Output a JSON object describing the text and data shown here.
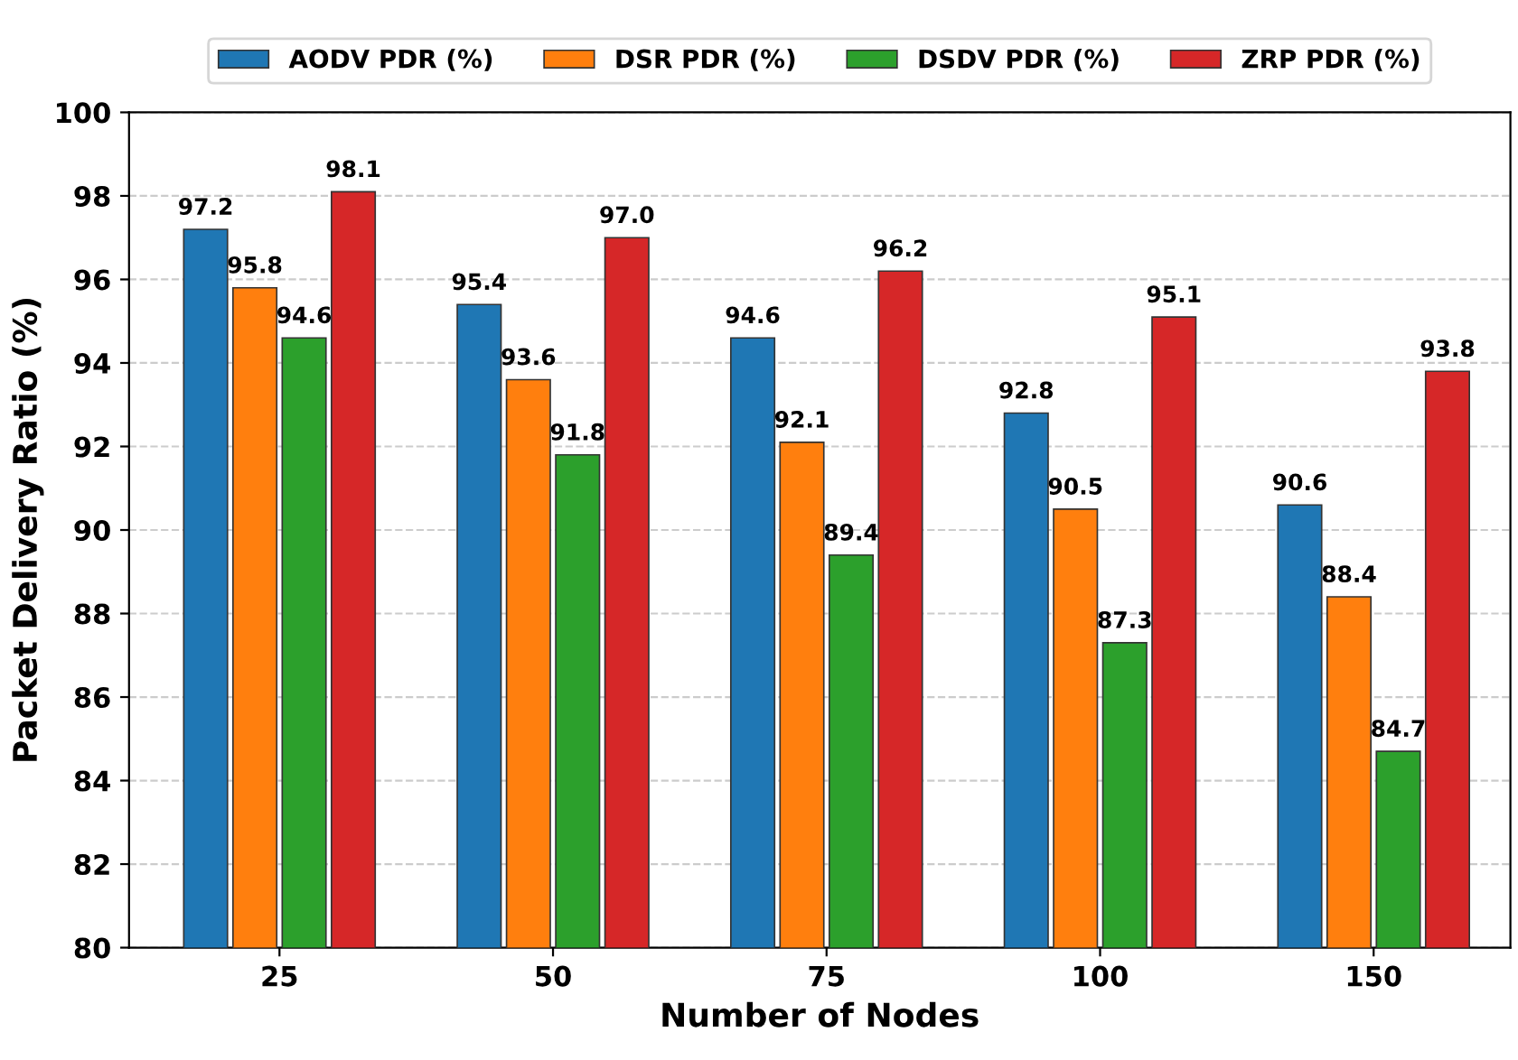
{
  "chart_data": {
    "type": "bar",
    "xlabel": "Number of Nodes",
    "ylabel": "Packet Delivery Ratio (%)",
    "categories": [
      "25",
      "50",
      "75",
      "100",
      "150"
    ],
    "series": [
      {
        "name": "AODV PDR (%)",
        "color": "#1f77b4",
        "values": [
          97.2,
          95.4,
          94.6,
          92.8,
          90.6
        ],
        "value_labels": [
          "97.2",
          "95.4",
          "94.6",
          "92.8",
          "90.6"
        ]
      },
      {
        "name": "DSR PDR (%)",
        "color": "#ff7f0e",
        "values": [
          95.8,
          93.6,
          92.1,
          90.5,
          88.4
        ],
        "value_labels": [
          "95.8",
          "93.6",
          "92.1",
          "90.5",
          "88.4"
        ]
      },
      {
        "name": "DSDV PDR (%)",
        "color": "#2ca02c",
        "values": [
          94.6,
          91.8,
          89.4,
          87.3,
          84.7
        ],
        "value_labels": [
          "94.6",
          "91.8",
          "89.4",
          "87.3",
          "84.7"
        ]
      },
      {
        "name": "ZRP PDR (%)",
        "color": "#d62728",
        "values": [
          98.1,
          97.0,
          96.2,
          95.1,
          93.8
        ],
        "value_labels": [
          "98.1",
          "97.0",
          "96.2",
          "95.1",
          "93.8"
        ]
      }
    ],
    "ylim": [
      80,
      100
    ],
    "yticks": [
      80,
      82,
      84,
      86,
      88,
      90,
      92,
      94,
      96,
      98,
      100
    ],
    "grid": "y",
    "legend": "top"
  }
}
